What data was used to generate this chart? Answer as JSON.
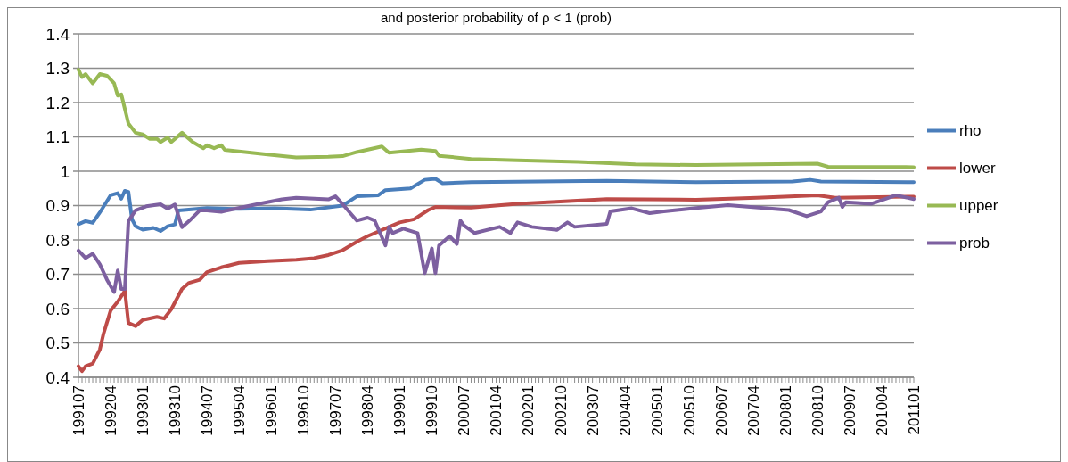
{
  "chart_data": {
    "type": "line",
    "title": "and posterior probability of ρ < 1 (prob)",
    "xlim": [
      "1991-07",
      "2011-01"
    ],
    "xticks": [
      {
        "value": "1991-07",
        "label": "199107"
      },
      {
        "value": "1992-04",
        "label": "199204"
      },
      {
        "value": "1993-01",
        "label": "199301"
      },
      {
        "value": "1993-10",
        "label": "199310"
      },
      {
        "value": "1994-07",
        "label": "199407"
      },
      {
        "value": "1995-04",
        "label": "199504"
      },
      {
        "value": "1996-01",
        "label": "199601"
      },
      {
        "value": "1996-10",
        "label": "199610"
      },
      {
        "value": "1997-07",
        "label": "199707"
      },
      {
        "value": "1998-04",
        "label": "199804"
      },
      {
        "value": "1999-01",
        "label": "199901"
      },
      {
        "value": "1999-10",
        "label": "199910"
      },
      {
        "value": "2000-07",
        "label": "200007"
      },
      {
        "value": "2001-04",
        "label": "200104"
      },
      {
        "value": "2002-01",
        "label": "200201"
      },
      {
        "value": "2002-10",
        "label": "200210"
      },
      {
        "value": "2003-07",
        "label": "200307"
      },
      {
        "value": "2004-04",
        "label": "200404"
      },
      {
        "value": "2005-01",
        "label": "200501"
      },
      {
        "value": "2005-10",
        "label": "200510"
      },
      {
        "value": "2006-07",
        "label": "200607"
      },
      {
        "value": "2007-04",
        "label": "200704"
      },
      {
        "value": "2008-01",
        "label": "200801"
      },
      {
        "value": "2008-10",
        "label": "200810"
      },
      {
        "value": "2009-07",
        "label": "200907"
      },
      {
        "value": "2010-04",
        "label": "201004"
      },
      {
        "value": "2011-01",
        "label": "201101"
      }
    ],
    "ylim": [
      0.4,
      1.4
    ],
    "yticks": [
      0.4,
      0.5,
      0.6,
      0.7,
      0.8,
      0.9,
      1,
      1.1,
      1.2,
      1.3,
      1.4
    ],
    "grid": "y",
    "legend": "right",
    "marker": "none",
    "line_style": "solid",
    "series": [
      {
        "name": "rho",
        "color": "#4a7ebb",
        "x": [
          "1991-07",
          "1991-09",
          "1991-11",
          "1992-01",
          "1992-04",
          "1992-06",
          "1992-07",
          "1992-08",
          "1992-09",
          "1992-10",
          "1992-11",
          "1993-01",
          "1993-04",
          "1993-06",
          "1993-08",
          "1993-10",
          "1993-11",
          "1994-07",
          "1995-04",
          "1996-02",
          "1996-12",
          "1997-09",
          "1998-01",
          "1998-07",
          "1998-09",
          "1999-04",
          "1999-08",
          "1999-11",
          "2000-01",
          "2000-09",
          "2003-11",
          "2005-12",
          "2008-03",
          "2008-08",
          "2008-11",
          "2011-01"
        ],
        "values": [
          0.846,
          0.855,
          0.85,
          0.88,
          0.93,
          0.936,
          0.92,
          0.943,
          0.94,
          0.86,
          0.84,
          0.83,
          0.835,
          0.826,
          0.84,
          0.845,
          0.886,
          0.893,
          0.89,
          0.892,
          0.888,
          0.9,
          0.927,
          0.93,
          0.945,
          0.95,
          0.975,
          0.978,
          0.965,
          0.968,
          0.972,
          0.968,
          0.97,
          0.975,
          0.97,
          0.968
        ]
      },
      {
        "name": "lower",
        "color": "#be4b48",
        "x": [
          "1991-07",
          "1991-08",
          "1991-09",
          "1991-11",
          "1992-01",
          "1992-02",
          "1992-04",
          "1992-06",
          "1992-08",
          "1992-09",
          "1992-11",
          "1993-01",
          "1993-05",
          "1993-07",
          "1993-09",
          "1993-12",
          "1994-02",
          "1994-05",
          "1994-07",
          "1994-11",
          "1995-04",
          "1995-12",
          "1996-08",
          "1997-01",
          "1997-05",
          "1997-09",
          "1998-01",
          "1998-04",
          "1999-01",
          "1999-05",
          "1999-09",
          "1999-11",
          "2000-09",
          "2001-10",
          "2002-10",
          "2003-11",
          "2005-12",
          "2007-05",
          "2008-10",
          "2009-03",
          "2011-01"
        ],
        "values": [
          0.432,
          0.418,
          0.432,
          0.44,
          0.481,
          0.526,
          0.594,
          0.62,
          0.652,
          0.558,
          0.549,
          0.567,
          0.576,
          0.571,
          0.598,
          0.657,
          0.675,
          0.684,
          0.706,
          0.72,
          0.733,
          0.738,
          0.742,
          0.747,
          0.756,
          0.77,
          0.795,
          0.811,
          0.851,
          0.86,
          0.887,
          0.896,
          0.894,
          0.905,
          0.912,
          0.919,
          0.917,
          0.923,
          0.93,
          0.923,
          0.926
        ]
      },
      {
        "name": "upper",
        "color": "#98b954",
        "x": [
          "1991-07",
          "1991-08",
          "1991-09",
          "1991-11",
          "1992-01",
          "1992-03",
          "1992-05",
          "1992-06",
          "1992-07",
          "1992-09",
          "1992-11",
          "1993-01",
          "1993-03",
          "1993-05",
          "1993-06",
          "1993-08",
          "1993-09",
          "1993-12",
          "1994-03",
          "1994-06",
          "1994-07",
          "1994-09",
          "1994-11",
          "1994-12",
          "1995-08",
          "1995-12",
          "1996-08",
          "1997-05",
          "1997-09",
          "1998-01",
          "1998-08",
          "1998-10",
          "1999-07",
          "1999-11",
          "1999-12",
          "2000-09",
          "2001-10",
          "2003-03",
          "2004-07",
          "2005-12",
          "2008-10",
          "2009-01",
          "2011-01"
        ],
        "values": [
          1.296,
          1.274,
          1.283,
          1.256,
          1.283,
          1.278,
          1.256,
          1.22,
          1.224,
          1.139,
          1.112,
          1.107,
          1.094,
          1.094,
          1.085,
          1.098,
          1.085,
          1.112,
          1.085,
          1.067,
          1.076,
          1.067,
          1.076,
          1.062,
          1.053,
          1.049,
          1.04,
          1.042,
          1.044,
          1.056,
          1.072,
          1.054,
          1.063,
          1.059,
          1.045,
          1.036,
          1.032,
          1.027,
          1.02,
          1.018,
          1.022,
          1.013,
          1.012
        ]
      },
      {
        "name": "prob",
        "color": "#7d60a0",
        "x": [
          "1991-07",
          "1991-09",
          "1991-11",
          "1992-01",
          "1992-03",
          "1992-05",
          "1992-06",
          "1992-07",
          "1992-08",
          "1992-09",
          "1992-11",
          "1993-02",
          "1993-06",
          "1993-08",
          "1993-10",
          "1993-12",
          "1994-02",
          "1994-05",
          "1994-07",
          "1994-11",
          "1995-03",
          "1995-09",
          "1996-04",
          "1996-08",
          "1997-05",
          "1997-07",
          "1997-09",
          "1997-11",
          "1998-01",
          "1998-04",
          "1998-06",
          "1998-09",
          "1998-10",
          "1998-11",
          "1999-02",
          "1999-06",
          "1999-08",
          "1999-10",
          "1999-11",
          "1999-12",
          "2000-03",
          "2000-05",
          "2000-06",
          "2000-07",
          "2000-10",
          "2001-05",
          "2001-08",
          "2001-10",
          "2002-02",
          "2002-09",
          "2002-12",
          "2003-02",
          "2003-11",
          "2003-12",
          "2004-06",
          "2004-11",
          "2005-03",
          "2005-12",
          "2006-09",
          "2008-02",
          "2008-07",
          "2008-11",
          "2009-01",
          "2009-04",
          "2009-05",
          "2009-06",
          "2010-01",
          "2010-08",
          "2011-01"
        ],
        "values": [
          0.769,
          0.747,
          0.76,
          0.729,
          0.684,
          0.648,
          0.711,
          0.657,
          0.657,
          0.855,
          0.886,
          0.898,
          0.904,
          0.891,
          0.903,
          0.837,
          0.855,
          0.886,
          0.886,
          0.882,
          0.891,
          0.904,
          0.918,
          0.923,
          0.918,
          0.927,
          0.904,
          0.88,
          0.856,
          0.865,
          0.856,
          0.784,
          0.838,
          0.82,
          0.833,
          0.82,
          0.703,
          0.775,
          0.703,
          0.784,
          0.811,
          0.788,
          0.856,
          0.842,
          0.82,
          0.838,
          0.82,
          0.851,
          0.838,
          0.829,
          0.851,
          0.838,
          0.847,
          0.883,
          0.892,
          0.878,
          0.883,
          0.893,
          0.901,
          0.887,
          0.869,
          0.883,
          0.91,
          0.923,
          0.896,
          0.91,
          0.905,
          0.93,
          0.919
        ]
      }
    ]
  }
}
